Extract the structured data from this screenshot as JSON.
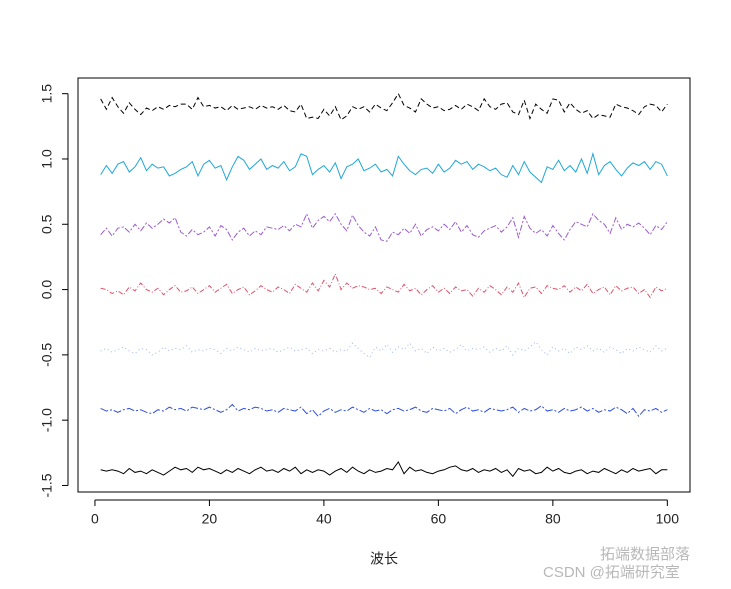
{
  "chart_data": {
    "type": "line",
    "x_label": "波长",
    "xlim": [
      -2.96,
      103.96
    ],
    "ylim": [
      -1.55,
      1.62
    ],
    "xticks": [
      0,
      20,
      40,
      60,
      80,
      100
    ],
    "yticks": [
      {
        "value": -1.5,
        "label": "-1.5"
      },
      {
        "value": -1,
        "label": "-1.0"
      },
      {
        "value": -0.5,
        "label": "-0.5"
      },
      {
        "value": 0,
        "label": "0.0"
      },
      {
        "value": 0.5,
        "label": "0.5"
      },
      {
        "value": 1,
        "label": "1.0"
      },
      {
        "value": 1.5,
        "label": "1.5"
      }
    ],
    "x": [
      1,
      2,
      3,
      4,
      5,
      6,
      7,
      8,
      9,
      10,
      11,
      12,
      13,
      14,
      15,
      16,
      17,
      18,
      19,
      20,
      21,
      22,
      23,
      24,
      25,
      26,
      27,
      28,
      29,
      30,
      31,
      32,
      33,
      34,
      35,
      36,
      37,
      38,
      39,
      40,
      41,
      42,
      43,
      44,
      45,
      46,
      47,
      48,
      49,
      50,
      51,
      52,
      53,
      54,
      55,
      56,
      57,
      58,
      59,
      60,
      61,
      62,
      63,
      64,
      65,
      66,
      67,
      68,
      69,
      70,
      71,
      72,
      73,
      74,
      75,
      76,
      77,
      78,
      79,
      80,
      81,
      82,
      83,
      84,
      85,
      86,
      87,
      88,
      89,
      90,
      91,
      92,
      93,
      94,
      95,
      96,
      97,
      98,
      99,
      100
    ],
    "series": [
      {
        "color": "#000000",
        "dash": "5,3",
        "values": [
          1.46,
          1.38,
          1.47,
          1.4,
          1.35,
          1.43,
          1.38,
          1.34,
          1.39,
          1.37,
          1.4,
          1.38,
          1.41,
          1.4,
          1.42,
          1.42,
          1.38,
          1.47,
          1.4,
          1.41,
          1.39,
          1.4,
          1.37,
          1.41,
          1.38,
          1.39,
          1.4,
          1.38,
          1.41,
          1.39,
          1.4,
          1.38,
          1.41,
          1.37,
          1.36,
          1.42,
          1.31,
          1.32,
          1.31,
          1.38,
          1.33,
          1.4,
          1.3,
          1.33,
          1.4,
          1.38,
          1.4,
          1.36,
          1.42,
          1.39,
          1.37,
          1.43,
          1.5,
          1.41,
          1.39,
          1.36,
          1.46,
          1.42,
          1.39,
          1.4,
          1.37,
          1.38,
          1.41,
          1.38,
          1.42,
          1.4,
          1.37,
          1.46,
          1.4,
          1.38,
          1.42,
          1.43,
          1.36,
          1.34,
          1.45,
          1.31,
          1.42,
          1.38,
          1.35,
          1.46,
          1.45,
          1.36,
          1.43,
          1.38,
          1.35,
          1.37,
          1.31,
          1.34,
          1.33,
          1.32,
          1.42,
          1.4,
          1.39,
          1.37,
          1.34,
          1.4,
          1.42,
          1.41,
          1.36,
          1.42
        ]
      },
      {
        "color": "#1fa8d8",
        "dash": "none",
        "values": [
          0.88,
          0.95,
          0.89,
          0.96,
          0.98,
          0.9,
          0.94,
          1.01,
          0.91,
          0.96,
          0.93,
          0.94,
          0.87,
          0.89,
          0.92,
          0.94,
          0.98,
          0.87,
          0.96,
          0.99,
          0.93,
          0.95,
          0.84,
          0.94,
          1.02,
          0.99,
          0.92,
          0.96,
          1.0,
          0.92,
          0.95,
          0.93,
          0.98,
          0.91,
          0.94,
          1.04,
          1.02,
          0.88,
          0.92,
          0.95,
          0.9,
          0.97,
          0.85,
          0.94,
          0.96,
          1.0,
          0.91,
          0.93,
          0.96,
          0.9,
          0.92,
          0.87,
          1.02,
          0.96,
          0.91,
          0.88,
          0.92,
          0.93,
          0.89,
          0.96,
          0.9,
          0.93,
          0.99,
          0.96,
          0.98,
          0.92,
          0.96,
          0.94,
          0.91,
          0.93,
          0.88,
          0.86,
          0.95,
          0.88,
          0.98,
          0.9,
          0.86,
          0.82,
          0.94,
          0.92,
          0.99,
          0.91,
          0.95,
          0.9,
          1.0,
          0.89,
          1.04,
          0.88,
          0.95,
          0.98,
          0.92,
          0.87,
          0.93,
          0.97,
          0.95,
          0.98,
          0.92,
          0.98,
          0.96,
          0.87
        ]
      },
      {
        "color": "#9b59d0",
        "dash": "6,2,2,2",
        "values": [
          0.42,
          0.47,
          0.41,
          0.47,
          0.48,
          0.44,
          0.5,
          0.45,
          0.51,
          0.47,
          0.5,
          0.54,
          0.51,
          0.55,
          0.44,
          0.41,
          0.46,
          0.42,
          0.44,
          0.48,
          0.41,
          0.49,
          0.46,
          0.38,
          0.44,
          0.47,
          0.41,
          0.45,
          0.42,
          0.48,
          0.47,
          0.46,
          0.49,
          0.45,
          0.5,
          0.48,
          0.58,
          0.47,
          0.53,
          0.56,
          0.52,
          0.58,
          0.5,
          0.45,
          0.57,
          0.49,
          0.44,
          0.41,
          0.48,
          0.38,
          0.37,
          0.44,
          0.42,
          0.47,
          0.43,
          0.5,
          0.41,
          0.46,
          0.48,
          0.45,
          0.5,
          0.46,
          0.52,
          0.44,
          0.49,
          0.42,
          0.4,
          0.45,
          0.47,
          0.49,
          0.44,
          0.48,
          0.55,
          0.4,
          0.56,
          0.47,
          0.43,
          0.46,
          0.41,
          0.49,
          0.43,
          0.38,
          0.46,
          0.52,
          0.5,
          0.48,
          0.58,
          0.53,
          0.5,
          0.43,
          0.55,
          0.46,
          0.5,
          0.48,
          0.51,
          0.47,
          0.42,
          0.49,
          0.46,
          0.52
        ]
      },
      {
        "color": "#df536b",
        "dash": "5,2,1,2",
        "values": [
          0.01,
          0.0,
          -0.03,
          -0.01,
          -0.04,
          0.02,
          -0.01,
          0.05,
          0.0,
          -0.02,
          0.01,
          -0.04,
          0.0,
          0.03,
          -0.02,
          -0.01,
          0.02,
          -0.03,
          0.0,
          0.03,
          -0.02,
          0.01,
          0.04,
          -0.03,
          0.0,
          0.02,
          -0.04,
          -0.01,
          0.03,
          0.0,
          -0.02,
          0.02,
          0.0,
          -0.03,
          0.04,
          0.01,
          -0.02,
          0.05,
          -0.01,
          0.07,
          0.02,
          0.12,
          0.0,
          0.05,
          0.01,
          0.03,
          0.02,
          0.0,
          0.01,
          -0.03,
          0.02,
          0.0,
          -0.02,
          0.04,
          -0.01,
          0.01,
          -0.04,
          0.0,
          0.03,
          -0.02,
          0.01,
          -0.03,
          0.02,
          -0.01,
          0.0,
          -0.05,
          0.01,
          -0.02,
          0.03,
          0.0,
          -0.04,
          0.02,
          -0.02,
          0.05,
          -0.06,
          0.01,
          0.02,
          -0.03,
          0.03,
          0.01,
          0.0,
          0.03,
          -0.02,
          0.02,
          -0.01,
          0.04,
          -0.03,
          0.0,
          0.02,
          -0.04,
          0.03,
          -0.01,
          0.01,
          0.02,
          -0.03,
          0.0,
          -0.06,
          0.02,
          -0.01,
          0.01
        ]
      },
      {
        "color": "#9fb3f0",
        "dash": "1,3",
        "values": [
          -0.47,
          -0.45,
          -0.48,
          -0.46,
          -0.44,
          -0.47,
          -0.49,
          -0.45,
          -0.46,
          -0.5,
          -0.48,
          -0.44,
          -0.47,
          -0.45,
          -0.46,
          -0.43,
          -0.48,
          -0.46,
          -0.47,
          -0.45,
          -0.46,
          -0.49,
          -0.45,
          -0.47,
          -0.44,
          -0.46,
          -0.48,
          -0.45,
          -0.47,
          -0.46,
          -0.45,
          -0.48,
          -0.46,
          -0.44,
          -0.47,
          -0.46,
          -0.45,
          -0.49,
          -0.46,
          -0.47,
          -0.45,
          -0.48,
          -0.46,
          -0.47,
          -0.41,
          -0.45,
          -0.49,
          -0.52,
          -0.44,
          -0.47,
          -0.42,
          -0.48,
          -0.44,
          -0.46,
          -0.41,
          -0.47,
          -0.45,
          -0.49,
          -0.44,
          -0.47,
          -0.45,
          -0.48,
          -0.46,
          -0.42,
          -0.47,
          -0.45,
          -0.46,
          -0.44,
          -0.48,
          -0.45,
          -0.47,
          -0.43,
          -0.5,
          -0.45,
          -0.47,
          -0.44,
          -0.4,
          -0.46,
          -0.5,
          -0.44,
          -0.47,
          -0.45,
          -0.49,
          -0.44,
          -0.46,
          -0.43,
          -0.47,
          -0.45,
          -0.48,
          -0.44,
          -0.46,
          -0.49,
          -0.45,
          -0.47,
          -0.44,
          -0.46,
          -0.48,
          -0.43,
          -0.47,
          -0.45
        ]
      },
      {
        "color": "#2e4ee0",
        "dash": "8,2,2,2",
        "values": [
          -0.91,
          -0.93,
          -0.92,
          -0.94,
          -0.92,
          -0.91,
          -0.93,
          -0.92,
          -0.94,
          -0.95,
          -0.92,
          -0.93,
          -0.9,
          -0.92,
          -0.91,
          -0.93,
          -0.9,
          -0.91,
          -0.92,
          -0.9,
          -0.92,
          -0.94,
          -0.92,
          -0.88,
          -0.93,
          -0.91,
          -0.92,
          -0.9,
          -0.91,
          -0.93,
          -0.92,
          -0.94,
          -0.91,
          -0.92,
          -0.93,
          -0.9,
          -0.95,
          -0.92,
          -0.97,
          -0.93,
          -0.91,
          -0.94,
          -0.92,
          -0.93,
          -0.9,
          -0.92,
          -0.94,
          -0.91,
          -0.93,
          -0.92,
          -0.95,
          -0.92,
          -0.91,
          -0.93,
          -0.92,
          -0.9,
          -0.93,
          -0.94,
          -0.91,
          -0.92,
          -0.93,
          -0.91,
          -0.95,
          -0.92,
          -0.9,
          -0.93,
          -0.92,
          -0.94,
          -0.91,
          -0.92,
          -0.93,
          -0.92,
          -0.9,
          -0.94,
          -0.91,
          -0.93,
          -0.92,
          -0.89,
          -0.93,
          -0.92,
          -0.94,
          -0.91,
          -0.93,
          -0.92,
          -0.9,
          -0.93,
          -0.91,
          -0.94,
          -0.92,
          -0.93,
          -0.9,
          -0.92,
          -0.95,
          -0.91,
          -0.97,
          -0.92,
          -0.93,
          -0.91,
          -0.94,
          -0.92
        ]
      },
      {
        "color": "#000000",
        "dash": "none",
        "values": [
          -1.38,
          -1.39,
          -1.38,
          -1.39,
          -1.41,
          -1.37,
          -1.4,
          -1.39,
          -1.41,
          -1.38,
          -1.4,
          -1.42,
          -1.39,
          -1.36,
          -1.38,
          -1.37,
          -1.4,
          -1.36,
          -1.38,
          -1.37,
          -1.39,
          -1.41,
          -1.38,
          -1.4,
          -1.37,
          -1.39,
          -1.41,
          -1.38,
          -1.36,
          -1.39,
          -1.38,
          -1.4,
          -1.37,
          -1.39,
          -1.36,
          -1.41,
          -1.38,
          -1.4,
          -1.38,
          -1.39,
          -1.42,
          -1.39,
          -1.37,
          -1.4,
          -1.36,
          -1.39,
          -1.41,
          -1.38,
          -1.4,
          -1.39,
          -1.37,
          -1.38,
          -1.32,
          -1.41,
          -1.36,
          -1.39,
          -1.38,
          -1.4,
          -1.41,
          -1.39,
          -1.38,
          -1.36,
          -1.35,
          -1.38,
          -1.39,
          -1.37,
          -1.4,
          -1.38,
          -1.39,
          -1.37,
          -1.4,
          -1.38,
          -1.43,
          -1.37,
          -1.39,
          -1.38,
          -1.41,
          -1.4,
          -1.36,
          -1.39,
          -1.37,
          -1.4,
          -1.41,
          -1.39,
          -1.38,
          -1.41,
          -1.39,
          -1.4,
          -1.37,
          -1.39,
          -1.41,
          -1.38,
          -1.4,
          -1.37,
          -1.39,
          -1.38,
          -1.37,
          -1.41,
          -1.38,
          -1.38
        ]
      }
    ],
    "watermarks": [
      "拓端数据部落",
      "CSDN @拓端研究室"
    ]
  }
}
